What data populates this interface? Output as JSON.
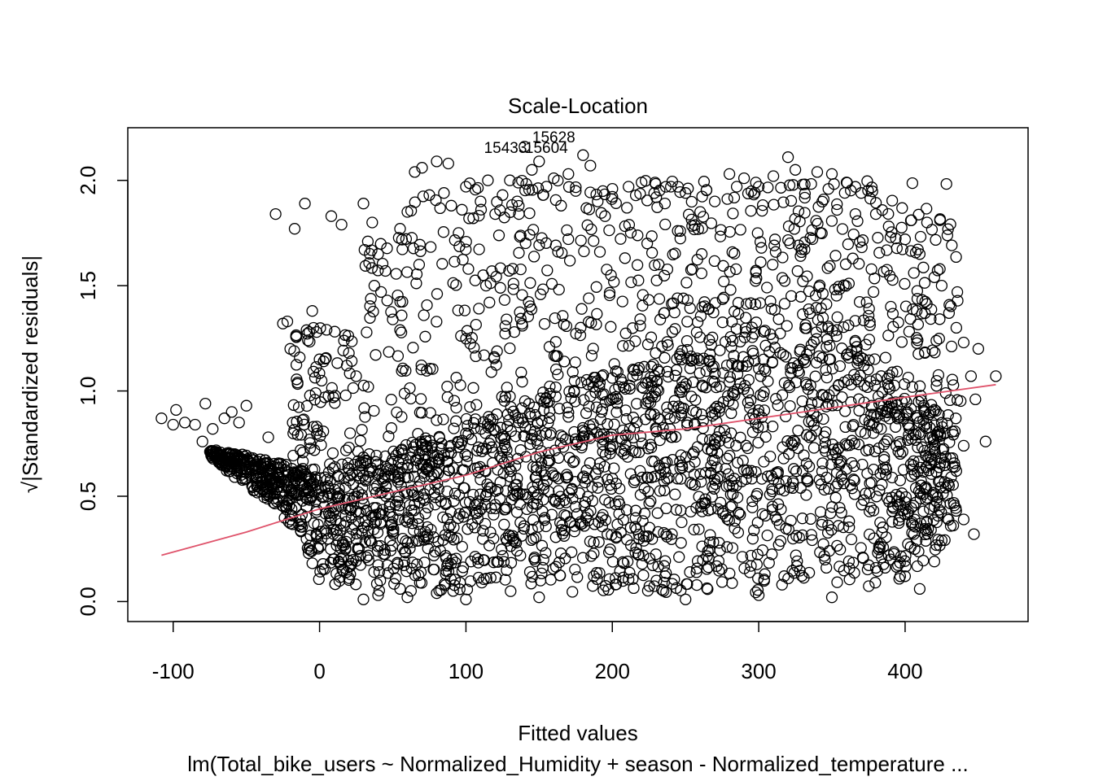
{
  "chart_data": {
    "type": "scatter",
    "title": "Scale-Location",
    "xlabel": "Fitted values",
    "ylabel": "Standardized residuals",
    "ylabel_prefix": "√|",
    "ylabel_suffix": "|",
    "subtitle": "lm(Total_bike_users ~ Normalized_Humidity + season - Normalized_temperature ...",
    "xlim": [
      -131,
      484
    ],
    "ylim": [
      -0.095,
      2.25
    ],
    "x_ticks": [
      -100,
      0,
      100,
      200,
      300,
      400
    ],
    "x_tick_labels": [
      "-100",
      "0",
      "100",
      "200",
      "300",
      "400"
    ],
    "y_ticks": [
      0.0,
      0.5,
      1.0,
      1.5,
      2.0
    ],
    "y_tick_labels": [
      "0.0",
      "0.5",
      "1.0",
      "1.5",
      "2.0"
    ],
    "grid": false,
    "point_style": "open-circle",
    "point_color": "#000000",
    "smooth_color": "#DF536B",
    "smooth_line": {
      "x": [
        -108,
        -50,
        0,
        50,
        100,
        150,
        200,
        250,
        300,
        350,
        400,
        462
      ],
      "y": [
        0.22,
        0.33,
        0.44,
        0.52,
        0.6,
        0.71,
        0.79,
        0.82,
        0.87,
        0.92,
        0.97,
        1.03
      ]
    },
    "outlier_labels": [
      {
        "text": "15628",
        "x": 160,
        "y": 2.18
      },
      {
        "text": "15433",
        "x": 127,
        "y": 2.13
      },
      {
        "text": "15604",
        "x": 155,
        "y": 2.13
      }
    ],
    "band_envelope": [
      {
        "x": -75,
        "lo": 0.69,
        "hi": 0.73
      },
      {
        "x": -60,
        "lo": 0.6,
        "hi": 0.71
      },
      {
        "x": -40,
        "lo": 0.5,
        "hi": 0.68
      },
      {
        "x": -20,
        "lo": 0.37,
        "hi": 0.65
      },
      {
        "x": 0,
        "lo": 0.08,
        "hi": 0.62
      },
      {
        "x": 50,
        "lo": 0.04,
        "hi": 0.72
      },
      {
        "x": 100,
        "lo": 0.04,
        "hi": 0.86
      },
      {
        "x": 150,
        "lo": 0.04,
        "hi": 0.99
      },
      {
        "x": 200,
        "lo": 0.04,
        "hi": 1.09
      },
      {
        "x": 250,
        "lo": 0.04,
        "hi": 1.2
      },
      {
        "x": 300,
        "lo": 0.04,
        "hi": 1.33
      },
      {
        "x": 340,
        "lo": 0.04,
        "hi": 1.38
      },
      {
        "x": 370,
        "lo": 0.04,
        "hi": 1.22
      },
      {
        "x": 400,
        "lo": 0.1,
        "hi": 1.0
      },
      {
        "x": 430,
        "lo": 0.3,
        "hi": 0.9
      }
    ],
    "sparse_points": [
      [
        -108,
        0.87
      ],
      [
        -100,
        0.84
      ],
      [
        -98,
        0.91
      ],
      [
        -92,
        0.85
      ],
      [
        -85,
        0.84
      ],
      [
        -80,
        0.76
      ],
      [
        -78,
        0.94
      ],
      [
        -73,
        0.82
      ],
      [
        -65,
        0.87
      ],
      [
        -60,
        0.9
      ],
      [
        -55,
        0.85
      ],
      [
        -50,
        0.93
      ],
      [
        -35,
        0.78
      ],
      [
        -30,
        1.84
      ],
      [
        -25,
        1.32
      ],
      [
        -22,
        1.33
      ],
      [
        -20,
        1.2
      ],
      [
        -17,
        1.77
      ],
      [
        -15,
        1.04
      ],
      [
        -10,
        1.89
      ],
      [
        -8,
        1.24
      ],
      [
        -5,
        1.38
      ],
      [
        -2,
        1.28
      ],
      [
        0,
        1.15
      ],
      [
        8,
        1.83
      ],
      [
        15,
        1.79
      ],
      [
        20,
        1.18
      ],
      [
        25,
        1.07
      ],
      [
        30,
        1.89
      ],
      [
        33,
        1.71
      ],
      [
        36,
        1.8
      ],
      [
        40,
        1.65
      ],
      [
        42,
        1.47
      ],
      [
        45,
        1.57
      ],
      [
        50,
        1.34
      ],
      [
        55,
        1.77
      ],
      [
        60,
        1.85
      ],
      [
        65,
        2.04
      ],
      [
        68,
        1.6
      ],
      [
        70,
        2.06
      ],
      [
        75,
        1.93
      ],
      [
        80,
        2.09
      ],
      [
        85,
        1.94
      ],
      [
        88,
        2.08
      ],
      [
        90,
        1.88
      ],
      [
        95,
        1.75
      ],
      [
        100,
        1.97
      ],
      [
        105,
        1.82
      ],
      [
        110,
        1.9
      ],
      [
        115,
        2.0
      ],
      [
        120,
        1.84
      ],
      [
        125,
        1.93
      ],
      [
        130,
        2.0
      ],
      [
        135,
        1.9
      ],
      [
        140,
        2.16
      ],
      [
        145,
        2.05
      ],
      [
        150,
        2.09
      ],
      [
        155,
        1.97
      ],
      [
        160,
        2.01
      ],
      [
        165,
        1.88
      ],
      [
        170,
        2.03
      ],
      [
        175,
        1.95
      ],
      [
        180,
        2.12
      ],
      [
        185,
        2.07
      ],
      [
        190,
        1.9
      ],
      [
        195,
        1.83
      ],
      [
        200,
        1.96
      ],
      [
        210,
        1.87
      ],
      [
        220,
        1.99
      ],
      [
        230,
        1.92
      ],
      [
        240,
        1.97
      ],
      [
        250,
        1.94
      ],
      [
        260,
        1.85
      ],
      [
        270,
        1.9
      ],
      [
        280,
        2.03
      ],
      [
        285,
        1.97
      ],
      [
        290,
        2.01
      ],
      [
        300,
        1.97
      ],
      [
        310,
        2.02
      ],
      [
        320,
        2.11
      ],
      [
        325,
        2.05
      ],
      [
        330,
        1.98
      ],
      [
        340,
        2.04
      ],
      [
        350,
        2.03
      ],
      [
        360,
        1.99
      ],
      [
        370,
        1.94
      ],
      [
        380,
        1.84
      ],
      [
        390,
        1.73
      ],
      [
        400,
        1.72
      ],
      [
        410,
        1.65
      ],
      [
        415,
        1.8
      ],
      [
        420,
        1.54
      ],
      [
        425,
        1.5
      ],
      [
        430,
        1.37
      ],
      [
        435,
        1.3
      ],
      [
        440,
        1.23
      ],
      [
        445,
        1.07
      ],
      [
        450,
        1.2
      ],
      [
        455,
        0.76
      ],
      [
        462,
        1.07
      ],
      [
        440,
        0.39
      ],
      [
        447,
        0.32
      ],
      [
        425,
        0.29
      ],
      [
        420,
        0.19
      ],
      [
        410,
        0.06
      ],
      [
        400,
        0.12
      ],
      [
        390,
        0.2
      ],
      [
        380,
        0.16
      ],
      [
        430,
        0.55
      ],
      [
        435,
        0.62
      ],
      [
        440,
        0.74
      ],
      [
        420,
        0.45
      ],
      [
        415,
        0.38
      ],
      [
        448,
        0.96
      ],
      [
        30,
        0.01
      ],
      [
        40,
        0.03
      ],
      [
        55,
        0.06
      ],
      [
        60,
        0.02
      ],
      [
        80,
        0.04
      ],
      [
        100,
        0.01
      ],
      [
        150,
        0.02
      ],
      [
        250,
        0.01
      ],
      [
        300,
        0.03
      ],
      [
        350,
        0.02
      ]
    ]
  }
}
